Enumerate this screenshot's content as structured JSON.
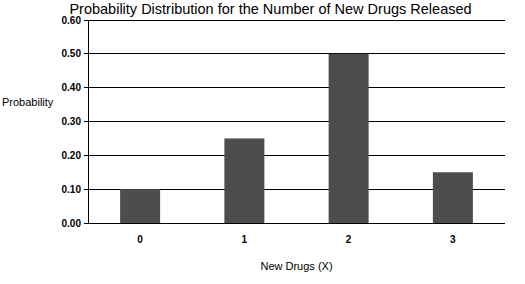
{
  "chart_data": {
    "type": "bar",
    "title": "Probability Distribution for the Number of New Drugs Released",
    "x_label": "New Drugs (X)",
    "y_label": "Probability",
    "categories": [
      "0",
      "1",
      "2",
      "3"
    ],
    "values": [
      0.1,
      0.25,
      0.5,
      0.15
    ],
    "color": "#4d4d4d",
    "ylim": [
      0,
      0.6
    ],
    "yticks": [
      {
        "value": 0,
        "label": "0.00"
      },
      {
        "value": 0.1,
        "label": "0.10"
      },
      {
        "value": 0.2,
        "label": "0.20"
      },
      {
        "value": 0.3,
        "label": "0.30"
      },
      {
        "value": 0.4,
        "label": "0.40"
      },
      {
        "value": 0.5,
        "label": "0.50"
      },
      {
        "value": 0.6,
        "label": "0.60"
      }
    ],
    "grid": true
  }
}
